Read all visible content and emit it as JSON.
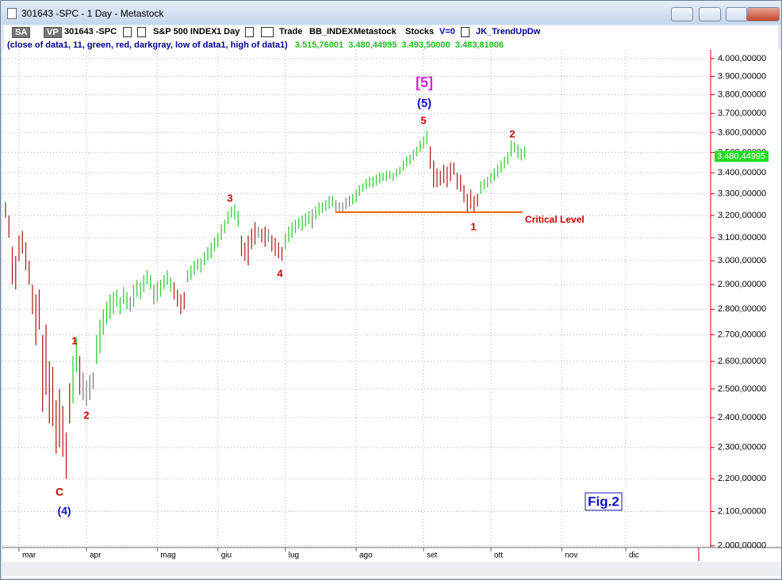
{
  "window": {
    "title": "301643 -SPC - 1 Day - Metastock"
  },
  "toolbar": {
    "items": [
      "SA",
      "VP",
      "301643 -SPC",
      "S&P 500 INDEX",
      "1 Day",
      "Trade",
      "BB_INDEX",
      "Metastock",
      "Stocks",
      "V=0",
      "JK_TrendUpDw"
    ]
  },
  "formula": {
    "text": "(close of data1,  11,  green,  red,  darkgray,  low of data1,  high of data1)",
    "values": [
      "3.515,76001",
      "3.480,44995",
      "3.493,50000",
      "3.483,81006"
    ]
  },
  "chart_data": {
    "type": "hl-bars",
    "categories": [
      null,
      null,
      null,
      null,
      "mar",
      null,
      null,
      null,
      null,
      null,
      null,
      null,
      null,
      null,
      null,
      null,
      null,
      null,
      null,
      null,
      null,
      null,
      null,
      null,
      "apr",
      null,
      null,
      null,
      null,
      null,
      null,
      null,
      null,
      null,
      null,
      null,
      null,
      null,
      null,
      null,
      null,
      null,
      null,
      null,
      null,
      "mag",
      null,
      null,
      null,
      null,
      null,
      null,
      null,
      null,
      null,
      null,
      null,
      null,
      null,
      null,
      null,
      null,
      null,
      "giu",
      null,
      null,
      null,
      null,
      null,
      null,
      null,
      null,
      null,
      null,
      null,
      null,
      null,
      null,
      null,
      null,
      null,
      null,
      null,
      "lug",
      null,
      null,
      null,
      null,
      null,
      null,
      null,
      null,
      null,
      null,
      null,
      null,
      null,
      null,
      null,
      null,
      null,
      null,
      null,
      null,
      "ago",
      null,
      null,
      null,
      null,
      null,
      null,
      null,
      null,
      null,
      null,
      null,
      null,
      null,
      null,
      null,
      null,
      null,
      null,
      null,
      "set",
      null,
      null,
      null,
      null,
      null,
      null,
      null,
      null,
      null,
      null,
      null,
      null,
      null,
      null,
      null,
      null,
      null,
      null,
      null,
      "ott",
      null,
      null,
      null,
      null,
      null,
      null,
      null,
      null,
      null,
      null,
      null,
      null,
      null,
      null,
      null,
      null,
      null,
      null,
      null,
      null,
      "nov",
      null,
      null,
      null,
      null,
      null,
      null,
      null,
      null,
      null,
      null,
      null,
      null,
      null,
      null,
      null,
      null,
      null,
      null,
      "dic",
      null,
      null,
      null,
      null,
      null,
      null,
      null,
      null,
      null,
      null,
      null,
      null,
      null,
      null,
      null,
      null,
      null,
      null,
      null,
      null,
      null
    ],
    "low": [
      3190,
      3100,
      2900,
      2880,
      3000,
      3030,
      2960,
      2900,
      2780,
      2660,
      2720,
      2420,
      2480,
      2380,
      2370,
      2280,
      2300,
      2270,
      2200,
      2380,
      2450,
      2560,
      2480,
      2460,
      2440,
      2460,
      2500,
      2590,
      2630,
      2700,
      2740,
      2760,
      2780,
      2810,
      2780,
      2820,
      2800,
      2790,
      2810,
      2850,
      2840,
      2870,
      2900,
      2880,
      2820,
      2830,
      2850,
      2880,
      2900,
      2870,
      2840,
      2810,
      2780,
      2800,
      2910,
      2920,
      2940,
      2960,
      2950,
      2980,
      3000,
      3010,
      3040,
      3060,
      3090,
      3120,
      3160,
      3190,
      3180,
      3150,
      3020,
      3000,
      2980,
      3050,
      3070,
      3100,
      3080,
      3060,
      3080,
      3040,
      3020,
      3010,
      3000,
      3050,
      3080,
      3100,
      3120,
      3140,
      3130,
      3150,
      3160,
      3140,
      3180,
      3200,
      3210,
      3220,
      3230,
      3240,
      3210,
      3220,
      3210,
      3230,
      3240,
      3250,
      3260,
      3290,
      3310,
      3320,
      3330,
      3330,
      3340,
      3350,
      3360,
      3360,
      3370,
      3360,
      3380,
      3390,
      3410,
      3430,
      3440,
      3460,
      3480,
      3500,
      3520,
      3540,
      3420,
      3330,
      3330,
      3340,
      3350,
      3330,
      3360,
      3390,
      3320,
      3310,
      3260,
      3210,
      3230,
      3210,
      3240,
      3300,
      3320,
      3330,
      3350,
      3360,
      3380,
      3400,
      3420,
      3440,
      3480,
      3500,
      3470,
      3460,
      3470,
      null,
      null,
      null,
      null,
      null,
      null,
      null,
      null,
      null,
      null,
      null,
      null,
      null,
      null,
      null,
      null,
      null,
      null,
      null,
      null,
      null,
      null,
      null,
      null,
      null,
      null,
      null,
      null,
      null,
      null,
      null,
      null,
      null,
      null,
      null,
      null,
      null,
      null,
      null,
      null,
      null,
      null,
      null,
      null,
      null,
      null,
      null,
      null,
      null,
      null,
      null
    ],
    "high": [
      3260,
      3200,
      3060,
      3020,
      3110,
      3130,
      3080,
      3000,
      2900,
      2860,
      2880,
      2700,
      2740,
      2600,
      2580,
      2460,
      2500,
      2440,
      2350,
      2520,
      2620,
      2690,
      2620,
      2560,
      2530,
      2550,
      2560,
      2700,
      2760,
      2800,
      2830,
      2860,
      2870,
      2880,
      2850,
      2890,
      2870,
      2850,
      2900,
      2920,
      2910,
      2940,
      2960,
      2940,
      2900,
      2910,
      2920,
      2940,
      2960,
      2930,
      2910,
      2880,
      2860,
      2870,
      2960,
      2980,
      3000,
      3010,
      3010,
      3040,
      3060,
      3080,
      3100,
      3120,
      3160,
      3180,
      3220,
      3240,
      3250,
      3220,
      3110,
      3080,
      3110,
      3140,
      3170,
      3150,
      3140,
      3150,
      3140,
      3110,
      3100,
      3080,
      3060,
      3120,
      3150,
      3170,
      3180,
      3190,
      3200,
      3210,
      3220,
      3230,
      3240,
      3260,
      3260,
      3270,
      3290,
      3290,
      3270,
      3260,
      3260,
      3280,
      3290,
      3300,
      3320,
      3340,
      3350,
      3370,
      3380,
      3380,
      3390,
      3400,
      3400,
      3410,
      3410,
      3400,
      3420,
      3430,
      3460,
      3480,
      3490,
      3510,
      3530,
      3560,
      3580,
      3610,
      3530,
      3460,
      3420,
      3410,
      3440,
      3430,
      3450,
      3450,
      3400,
      3390,
      3340,
      3300,
      3320,
      3290,
      3300,
      3360,
      3370,
      3380,
      3400,
      3420,
      3440,
      3460,
      3480,
      3500,
      3560,
      3550,
      3540,
      3520,
      3530,
      null,
      null,
      null,
      null,
      null,
      null,
      null,
      null,
      null,
      null,
      null,
      null,
      null,
      null,
      null,
      null,
      null,
      null,
      null,
      null,
      null,
      null,
      null,
      null,
      null,
      null,
      null,
      null,
      null,
      null,
      null,
      null,
      null,
      null,
      null,
      null,
      null,
      null,
      null,
      null,
      null,
      null,
      null,
      null,
      null,
      null,
      null,
      null,
      null,
      null,
      null
    ],
    "colors": [
      "firebrick",
      "firebrick",
      "firebrick",
      "firebrick",
      "firebrick",
      "firebrick",
      "firebrick",
      "firebrick",
      "firebrick",
      "firebrick",
      "firebrick",
      "firebrick",
      "firebrick",
      "firebrick",
      "firebrick",
      "firebrick",
      "firebrick",
      "firebrick",
      "firebrick",
      "firebrick",
      "limegreen",
      "limegreen",
      "firebrick",
      "gray",
      "gray",
      "gray",
      "gray",
      "limegreen",
      "limegreen",
      "limegreen",
      "limegreen",
      "limegreen",
      "limegreen",
      "limegreen",
      "limegreen",
      "limegreen",
      "limegreen",
      "gray",
      "limegreen",
      "limegreen",
      "limegreen",
      "limegreen",
      "limegreen",
      "limegreen",
      "gray",
      "limegreen",
      "limegreen",
      "limegreen",
      "limegreen",
      "limegreen",
      "firebrick",
      "firebrick",
      "firebrick",
      "firebrick",
      "limegreen",
      "limegreen",
      "limegreen",
      "limegreen",
      "limegreen",
      "limegreen",
      "limegreen",
      "limegreen",
      "limegreen",
      "limegreen",
      "limegreen",
      "limegreen",
      "limegreen",
      "limegreen",
      "limegreen",
      "limegreen",
      "firebrick",
      "firebrick",
      "firebrick",
      "firebrick",
      "firebrick",
      "gray",
      "firebrick",
      "firebrick",
      "gray",
      "firebrick",
      "firebrick",
      "firebrick",
      "firebrick",
      "limegreen",
      "limegreen",
      "limegreen",
      "limegreen",
      "limegreen",
      "limegreen",
      "limegreen",
      "limegreen",
      "gray",
      "limegreen",
      "limegreen",
      "limegreen",
      "limegreen",
      "limegreen",
      "limegreen",
      "gray",
      "gray",
      "gray",
      "gray",
      "gray",
      "limegreen",
      "limegreen",
      "limegreen",
      "limegreen",
      "limegreen",
      "limegreen",
      "limegreen",
      "limegreen",
      "limegreen",
      "limegreen",
      "limegreen",
      "limegreen",
      "limegreen",
      "limegreen",
      "limegreen",
      "limegreen",
      "limegreen",
      "limegreen",
      "limegreen",
      "limegreen",
      "limegreen",
      "limegreen",
      "limegreen",
      "firebrick",
      "firebrick",
      "firebrick",
      "firebrick",
      "firebrick",
      "firebrick",
      "firebrick",
      "firebrick",
      "firebrick",
      "firebrick",
      "firebrick",
      "firebrick",
      "firebrick",
      "firebrick",
      "firebrick",
      "limegreen",
      "limegreen",
      "limegreen",
      "limegreen",
      "limegreen",
      "limegreen",
      "limegreen",
      "limegreen",
      "limegreen",
      "limegreen",
      "limegreen",
      "limegreen",
      "limegreen",
      "limegreen",
      null,
      null,
      null,
      null,
      null,
      null,
      null,
      null,
      null,
      null,
      null,
      null,
      null,
      null,
      null,
      null,
      null,
      null,
      null,
      null,
      null,
      null,
      null,
      null,
      null,
      null,
      null,
      null,
      null,
      null,
      null,
      null,
      null,
      null,
      null,
      null,
      null,
      null,
      null,
      null,
      null,
      null,
      null,
      null,
      null,
      null,
      null,
      null,
      null,
      null,
      null
    ],
    "log_scale": true,
    "grid": true,
    "ylim": [
      1995,
      4036
    ],
    "yticks": [
      {
        "value": 2000,
        "label": "2.000,00000"
      },
      {
        "value": 2100,
        "label": "2.100,00000"
      },
      {
        "value": 2200,
        "label": "2.200,00000"
      },
      {
        "value": 2300,
        "label": "2.300,00000"
      },
      {
        "value": 2400,
        "label": "2.400,00000"
      },
      {
        "value": 2500,
        "label": "2.500,00000"
      },
      {
        "value": 2600,
        "label": "2.600,00000"
      },
      {
        "value": 2700,
        "label": "2.700,00000"
      },
      {
        "value": 2800,
        "label": "2.800,00000"
      },
      {
        "value": 2900,
        "label": "2.900,00000"
      },
      {
        "value": 3000,
        "label": "3.000,00000"
      },
      {
        "value": 3100,
        "label": "3.100,00000"
      },
      {
        "value": 3200,
        "label": "3.200,00000"
      },
      {
        "value": 3300,
        "label": "3.300,00000"
      },
      {
        "value": 3400,
        "label": "3.400,00000"
      },
      {
        "value": 3500,
        "label": "3.500,00000"
      },
      {
        "value": 3600,
        "label": "3.600,00000"
      },
      {
        "value": 3700,
        "label": "3.700,00000"
      },
      {
        "value": 3800,
        "label": "3.800,00000"
      },
      {
        "value": 3900,
        "label": "3.900,00000"
      },
      {
        "value": 4000,
        "label": "4.000,00000"
      }
    ],
    "last_value": {
      "value": 3480.44995,
      "label": "3.480,44995"
    },
    "critical_level": {
      "value": 3215,
      "label": "Critical Level"
    },
    "annotations": [
      "[5]",
      "(5)",
      "5",
      "3",
      "4",
      "1",
      "2",
      "C",
      "(4)",
      "1",
      "2",
      "Fig.2"
    ]
  }
}
